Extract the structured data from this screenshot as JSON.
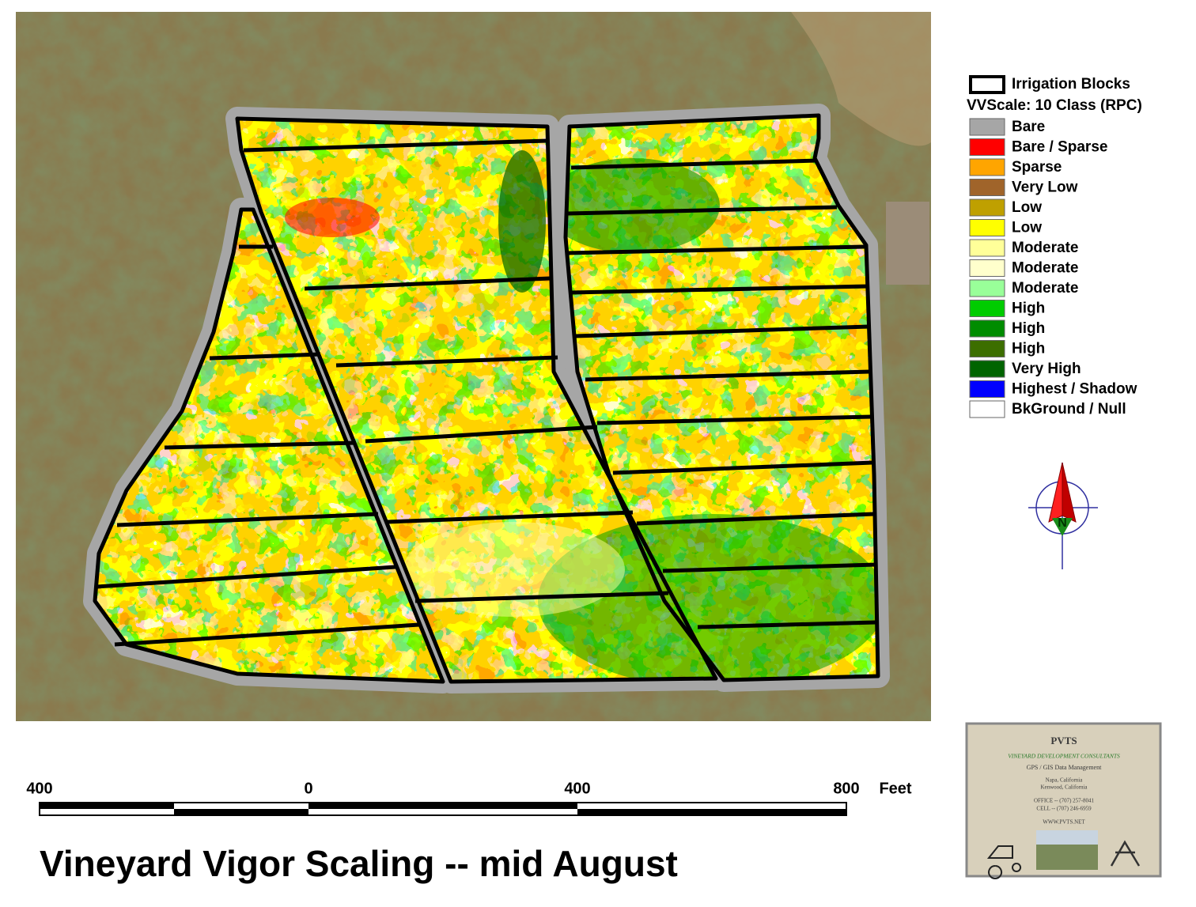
{
  "legend": {
    "blocks_label": "Irrigation Blocks",
    "scale_title": "VVScale: 10 Class (RPC)",
    "items": [
      {
        "label": "Bare",
        "color": "#a6a6a6"
      },
      {
        "label": "Bare / Sparse",
        "color": "#ff0000"
      },
      {
        "label": "Sparse",
        "color": "#ffa500"
      },
      {
        "label": "Very Low",
        "color": "#a0642a"
      },
      {
        "label": "Low",
        "color": "#bfa000"
      },
      {
        "label": "Low",
        "color": "#ffff00"
      },
      {
        "label": "Moderate",
        "color": "#ffff99"
      },
      {
        "label": "Moderate",
        "color": "#ffffcc"
      },
      {
        "label": "Moderate",
        "color": "#99ff99"
      },
      {
        "label": "High",
        "color": "#00cc00"
      },
      {
        "label": "High",
        "color": "#008c00"
      },
      {
        "label": "High",
        "color": "#3c6e00"
      },
      {
        "label": "Very High",
        "color": "#006400"
      },
      {
        "label": "Highest / Shadow",
        "color": "#0000ff"
      },
      {
        "label": "BkGround / Null",
        "color": "#ffffff"
      }
    ]
  },
  "compass": {
    "label": "N"
  },
  "scale_bar": {
    "labels": [
      "400",
      "0",
      "400",
      "800"
    ],
    "unit": "Feet"
  },
  "title": "Vineyard Vigor Scaling --  mid August",
  "logo": {
    "name": "PVTS",
    "tagline": "VINEYARD DEVELOPMENT CONSULTANTS",
    "service": "GPS / GIS Data Management",
    "locations": [
      "Napa, California",
      "Kenwood, California"
    ],
    "office": "OFFICE --   (707) 257-8041",
    "cell": "CELL --   (707) 246-6959",
    "web": "WWW.PVTS.NET"
  }
}
